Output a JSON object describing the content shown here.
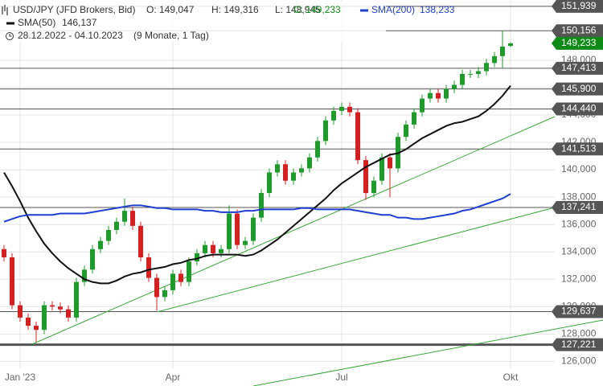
{
  "chart_data": {
    "type": "candlestick",
    "header": {
      "ohlc": [
        "O: 149,047",
        "H: 149,316",
        "L: 148,945",
        "C: 149,233"
      ],
      "period": "28.12.2022 - 04.10.2023",
      "duration": "(9 Monate, 1 Tag)"
    },
    "categories": [
      null,
      null,
      "Jan '23",
      null,
      null,
      null,
      null,
      null,
      null,
      null,
      null,
      null,
      null,
      null,
      null,
      null,
      null,
      null,
      null,
      null,
      null,
      "Apr",
      null,
      null,
      null,
      null,
      null,
      null,
      null,
      null,
      null,
      null,
      null,
      null,
      null,
      null,
      null,
      null,
      null,
      null,
      null,
      null,
      "Jul",
      null,
      null,
      null,
      null,
      null,
      null,
      null,
      null,
      null,
      null,
      null,
      null,
      null,
      null,
      null,
      null,
      null,
      null,
      null,
      null,
      "Okt"
    ],
    "series": [
      {
        "name": "USD/JPY (JFD Brokers, Bid)",
        "up_color": "#1f9b2b",
        "down_color": "#d42020",
        "open": [
          134200,
          133600,
          130100,
          129200,
          128600,
          128300,
          130100,
          130000,
          129800,
          129200,
          131800,
          132700,
          134200,
          134800,
          135600,
          136200,
          137000,
          135900,
          133600,
          132100,
          130700,
          131200,
          132400,
          131800,
          133300,
          133900,
          134500,
          133900,
          134200,
          136800,
          134500,
          134800,
          136500,
          138300,
          139800,
          140400,
          139200,
          139800,
          140100,
          140900,
          142100,
          143600,
          144300,
          144600,
          144200,
          140700,
          138300,
          139200,
          140900,
          140100,
          142400,
          143300,
          144200,
          145200,
          145600,
          145200,
          145900,
          146200,
          147000,
          147000,
          147200,
          147800,
          148300,
          149047
        ],
        "high": [
          134500,
          133900,
          130400,
          129500,
          128900,
          130400,
          130400,
          130300,
          130100,
          132100,
          133000,
          134500,
          135100,
          135900,
          136500,
          137900,
          137300,
          136200,
          133900,
          132400,
          131500,
          132700,
          132700,
          133600,
          134200,
          134800,
          134800,
          134500,
          137400,
          137100,
          135100,
          136800,
          138600,
          140100,
          140700,
          140700,
          140100,
          140400,
          141200,
          142400,
          143900,
          144600,
          144900,
          144900,
          144500,
          141000,
          139500,
          141200,
          141200,
          142700,
          143600,
          144500,
          145500,
          145900,
          145900,
          146200,
          146500,
          147300,
          147300,
          147500,
          148100,
          148600,
          150156,
          149316
        ],
        "low": [
          133300,
          129800,
          128900,
          128300,
          127400,
          128000,
          129700,
          129500,
          128900,
          128900,
          131500,
          132400,
          133900,
          134500,
          135300,
          135900,
          135600,
          133300,
          131800,
          129700,
          130400,
          130900,
          131500,
          131500,
          133000,
          133600,
          133600,
          133600,
          133900,
          134200,
          134200,
          134500,
          136200,
          138000,
          139500,
          138900,
          138900,
          139500,
          139800,
          140600,
          141800,
          143300,
          144000,
          143900,
          140400,
          137800,
          138000,
          138900,
          138000,
          139800,
          142100,
          143000,
          143900,
          144900,
          144900,
          144900,
          145600,
          145900,
          146700,
          146700,
          146900,
          147500,
          147400,
          148945
        ],
        "close": [
          133600,
          130100,
          129200,
          128600,
          128300,
          130100,
          130000,
          129800,
          129200,
          131800,
          132700,
          134200,
          134800,
          135600,
          136200,
          137000,
          135900,
          133600,
          132100,
          130700,
          131200,
          132400,
          131800,
          133300,
          133900,
          134500,
          133900,
          134200,
          136800,
          134500,
          134800,
          136500,
          138300,
          139800,
          140400,
          139200,
          139800,
          140100,
          140900,
          142100,
          143600,
          144300,
          144600,
          144200,
          140700,
          138300,
          139200,
          140900,
          140100,
          142400,
          143300,
          144200,
          145200,
          145600,
          145200,
          145900,
          146200,
          147000,
          147000,
          147200,
          147800,
          148300,
          149000,
          149233
        ]
      },
      {
        "name": "SMA(50)",
        "value_label": "146,137",
        "color": "#111111",
        "values": [
          139800,
          138800,
          137700,
          136500,
          135500,
          134600,
          133900,
          133300,
          132800,
          132400,
          132000,
          131800,
          131700,
          131700,
          131900,
          132200,
          132400,
          132500,
          132700,
          132800,
          132900,
          133100,
          133200,
          133400,
          133500,
          133700,
          133800,
          133800,
          133800,
          133800,
          133700,
          133800,
          134100,
          134500,
          134900,
          135400,
          135900,
          136400,
          136900,
          137400,
          137900,
          138500,
          139000,
          139400,
          139800,
          140200,
          140500,
          140800,
          141100,
          141200,
          141500,
          141900,
          142300,
          142600,
          142900,
          143200,
          143400,
          143500,
          143700,
          143900,
          144300,
          144800,
          145400,
          146137
        ]
      },
      {
        "name": "SMA(200)",
        "value_label": "138,233",
        "color": "#1f3fd0",
        "values": [
          136200,
          136400,
          136600,
          136700,
          136700,
          136700,
          136700,
          136800,
          136800,
          136800,
          136800,
          136900,
          137000,
          137100,
          137200,
          137300,
          137400,
          137400,
          137300,
          137200,
          137200,
          137100,
          137100,
          137100,
          137100,
          137000,
          137000,
          136900,
          136900,
          136900,
          137000,
          137000,
          137100,
          137100,
          137100,
          137100,
          137100,
          137200,
          137200,
          137100,
          137100,
          137100,
          137100,
          137100,
          137000,
          136900,
          136800,
          136700,
          136700,
          136500,
          136500,
          136400,
          136400,
          136500,
          136600,
          136700,
          136800,
          137000,
          137100,
          137300,
          137500,
          137700,
          137900,
          138233
        ]
      }
    ],
    "ylim": [
      124200,
      152400
    ],
    "yticks": [
      {
        "value": 126000,
        "label": "126,000"
      },
      {
        "value": 128000,
        "label": "128,000"
      },
      {
        "value": 130000,
        "label": "130,000"
      },
      {
        "value": 132000,
        "label": "132,000"
      },
      {
        "value": 134000,
        "label": "134,000"
      },
      {
        "value": 136000,
        "label": "136,000"
      },
      {
        "value": 138000,
        "label": "138,000"
      },
      {
        "value": 140000,
        "label": "140,000"
      },
      {
        "value": 142000,
        "label": "142,000"
      },
      {
        "value": 144000,
        "label": "144,000"
      },
      {
        "value": 146000,
        "label": "146,000"
      },
      {
        "value": 148000,
        "label": "148,000"
      }
    ],
    "levels": [
      {
        "value": 151939,
        "label": "151,939"
      },
      {
        "value": 150156,
        "label": "150,156"
      },
      {
        "value": 147413,
        "label": "147,413"
      },
      {
        "value": 145900,
        "label": "145,900"
      },
      {
        "value": 144440,
        "label": "144,440"
      },
      {
        "value": 141513,
        "label": "141,513"
      },
      {
        "value": 137241,
        "label": "137,241"
      },
      {
        "value": 129637,
        "label": "129,637"
      },
      {
        "value": 127221,
        "label": "127,221"
      }
    ],
    "level_color": "#555555",
    "last_price": {
      "value": 149233,
      "label": "149,233",
      "color": "#0e8a16"
    },
    "grid": true
  }
}
